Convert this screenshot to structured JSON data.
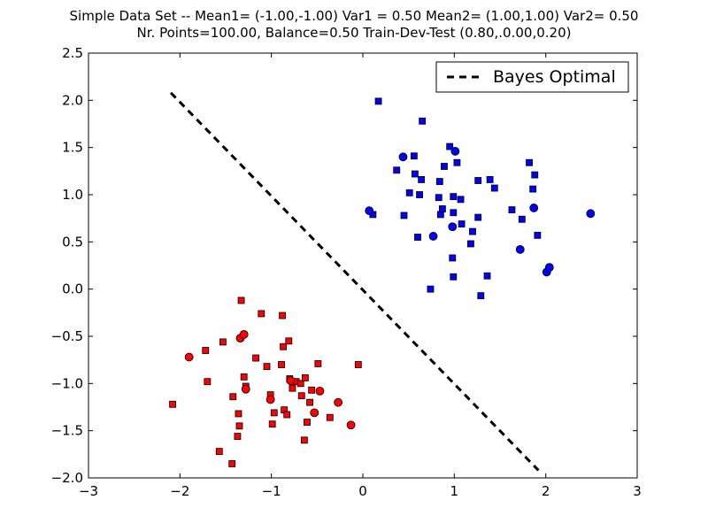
{
  "chart_data": {
    "type": "scatter",
    "title": [
      "Simple Data Set -- Mean1= (-1.00,-1.00) Var1 = 0.50 Mean2= (1.00,1.00) Var2= 0.50",
      "Nr. Points=100.00, Balance=0.50 Train-Dev-Test (0.80,.0.00,0.20)"
    ],
    "xlabel": "",
    "ylabel": "",
    "xlim": [
      -3,
      3
    ],
    "ylim": [
      -2.0,
      2.5
    ],
    "x_ticks": [
      -3,
      -2,
      -1,
      0,
      1,
      2,
      3
    ],
    "x_tick_labels": [
      "−3",
      "−2",
      "−1",
      "0",
      "1",
      "2",
      "3"
    ],
    "y_ticks": [
      -2.0,
      -1.5,
      -1.0,
      -0.5,
      0.0,
      0.5,
      1.0,
      1.5,
      2.0,
      2.5
    ],
    "y_tick_labels": [
      "−2.0",
      "−1.5",
      "−1.0",
      "−0.5",
      "0.0",
      "0.5",
      "1.0",
      "1.5",
      "2.0",
      "2.5"
    ],
    "grid": false,
    "legend": {
      "position": "top-right",
      "entries": [
        "Bayes Optimal"
      ]
    },
    "colors": {
      "class1": "#ff0000",
      "class2": "#0000ff",
      "line": "#000000"
    },
    "lines": [
      {
        "legend": "Bayes Optimal",
        "style": "dashed",
        "color": "#000000",
        "x": [
          -2.1,
          1.92
        ],
        "y": [
          2.08,
          -1.92
        ]
      }
    ],
    "series": [
      {
        "color": "#ff0000",
        "marker": "square",
        "role": "train",
        "points": [
          [
            -2.08,
            -1.22
          ],
          [
            -1.72,
            -0.65
          ],
          [
            -1.7,
            -0.98
          ],
          [
            -1.57,
            -1.72
          ],
          [
            -1.53,
            -0.56
          ],
          [
            -1.43,
            -1.85
          ],
          [
            -1.42,
            -1.14
          ],
          [
            -1.37,
            -1.56
          ],
          [
            -1.36,
            -1.32
          ],
          [
            -1.35,
            -1.45
          ],
          [
            -1.33,
            -0.12
          ],
          [
            -1.3,
            -0.93
          ],
          [
            -1.28,
            -1.03
          ],
          [
            -1.17,
            -0.73
          ],
          [
            -1.11,
            -0.26
          ],
          [
            -1.05,
            -0.82
          ],
          [
            -1.01,
            -1.12
          ],
          [
            -0.99,
            -1.43
          ],
          [
            -0.97,
            -1.31
          ],
          [
            -0.89,
            -0.8
          ],
          [
            -0.88,
            -0.28
          ],
          [
            -0.87,
            -0.61
          ],
          [
            -0.86,
            -1.28
          ],
          [
            -0.83,
            -1.33
          ],
          [
            -0.81,
            -0.55
          ],
          [
            -0.8,
            -0.95
          ],
          [
            -0.77,
            -1.05
          ],
          [
            -0.73,
            -0.98
          ],
          [
            -0.68,
            -1.0
          ],
          [
            -0.67,
            -1.13
          ],
          [
            -0.64,
            -1.6
          ],
          [
            -0.63,
            -0.94
          ],
          [
            -0.61,
            -1.41
          ],
          [
            -0.58,
            -1.2
          ],
          [
            -0.56,
            -1.07
          ],
          [
            -0.49,
            -0.79
          ],
          [
            -0.36,
            -1.36
          ],
          [
            -0.05,
            -0.8
          ]
        ]
      },
      {
        "color": "#ff0000",
        "marker": "circle",
        "role": "test",
        "points": [
          [
            -1.9,
            -0.72
          ],
          [
            -1.34,
            -0.52
          ],
          [
            -1.3,
            -0.48
          ],
          [
            -1.28,
            -1.06
          ],
          [
            -1.01,
            -1.17
          ],
          [
            -0.79,
            -0.97
          ],
          [
            -0.53,
            -1.31
          ],
          [
            -0.47,
            -1.08
          ],
          [
            -0.27,
            -1.2
          ],
          [
            -0.13,
            -1.44
          ]
        ]
      },
      {
        "color": "#0000ff",
        "marker": "square",
        "role": "train",
        "points": [
          [
            0.11,
            0.79
          ],
          [
            0.17,
            1.99
          ],
          [
            0.37,
            1.26
          ],
          [
            0.45,
            0.78
          ],
          [
            0.51,
            1.02
          ],
          [
            0.56,
            1.41
          ],
          [
            0.57,
            1.22
          ],
          [
            0.6,
            0.55
          ],
          [
            0.62,
            1.0
          ],
          [
            0.64,
            1.16
          ],
          [
            0.65,
            1.78
          ],
          [
            0.74,
            0.0
          ],
          [
            0.83,
            0.97
          ],
          [
            0.84,
            1.14
          ],
          [
            0.85,
            0.79
          ],
          [
            0.87,
            0.85
          ],
          [
            0.89,
            1.3
          ],
          [
            0.95,
            1.51
          ],
          [
            0.98,
            0.33
          ],
          [
            0.99,
            0.13
          ],
          [
            0.99,
            0.98
          ],
          [
            0.99,
            0.81
          ],
          [
            1.03,
            1.34
          ],
          [
            1.07,
            0.95
          ],
          [
            1.08,
            0.69
          ],
          [
            1.18,
            0.48
          ],
          [
            1.2,
            0.61
          ],
          [
            1.26,
            1.15
          ],
          [
            1.26,
            0.76
          ],
          [
            1.29,
            -0.07
          ],
          [
            1.36,
            0.14
          ],
          [
            1.39,
            1.16
          ],
          [
            1.44,
            1.07
          ],
          [
            1.63,
            0.84
          ],
          [
            1.74,
            0.74
          ],
          [
            1.82,
            1.34
          ],
          [
            1.86,
            1.06
          ],
          [
            1.88,
            1.21
          ],
          [
            1.91,
            0.57
          ]
        ]
      },
      {
        "color": "#0000ff",
        "marker": "circle",
        "role": "test",
        "points": [
          [
            0.07,
            0.83
          ],
          [
            0.44,
            1.4
          ],
          [
            0.77,
            0.56
          ],
          [
            0.98,
            0.66
          ],
          [
            1.01,
            1.46
          ],
          [
            1.72,
            0.42
          ],
          [
            1.87,
            0.86
          ],
          [
            2.01,
            0.18
          ],
          [
            2.04,
            0.23
          ],
          [
            2.49,
            0.8
          ]
        ]
      }
    ]
  }
}
